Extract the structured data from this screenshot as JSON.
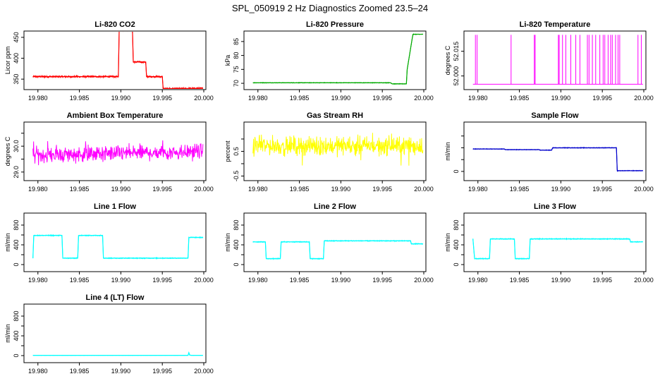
{
  "figure": {
    "title": "SPL_050919  2 Hz Diagnostics Zoomed 23.5–24"
  },
  "chart_data": [
    {
      "type": "line",
      "title": "Li-820 CO2",
      "ylabel": "Licor ppm",
      "color": "#ff0000",
      "xlim": [
        19.979,
        20.0
      ],
      "ylim": [
        330,
        460
      ],
      "xticks": [
        19.98,
        19.985,
        19.99,
        19.995,
        20.0
      ],
      "xtick_labels": [
        "19.980",
        "19.985",
        "19.990",
        "19.995",
        "20.000"
      ],
      "yticks": [
        350,
        400,
        450
      ],
      "ytick_labels": [
        "350",
        "400",
        "450"
      ],
      "noise": 2,
      "series": [
        {
          "x": [
            19.9794,
            19.9897,
            19.9898,
            19.9914,
            19.9915,
            19.993,
            19.9931,
            19.995,
            19.9951,
            19.9999
          ],
          "y": [
            356,
            356,
            467,
            467,
            391,
            391,
            356,
            356,
            327,
            328
          ]
        }
      ]
    },
    {
      "type": "line",
      "title": "Li-820 Pressure",
      "ylabel": "kPa",
      "color": "#00aa00",
      "xlim": [
        19.979,
        20.0
      ],
      "ylim": [
        68.5,
        88
      ],
      "xticks": [
        19.98,
        19.985,
        19.99,
        19.995,
        20.0
      ],
      "xtick_labels": [
        "19.980",
        "19.985",
        "19.990",
        "19.995",
        "20.000"
      ],
      "yticks": [
        70,
        75,
        80,
        85
      ],
      "ytick_labels": [
        "70",
        "75",
        "80",
        "85"
      ],
      "noise": 0.1,
      "series": [
        {
          "x": [
            19.9794,
            19.996,
            19.9962,
            19.9979,
            19.998,
            19.9986,
            19.9987,
            19.9999
          ],
          "y": [
            70.2,
            70.2,
            69.8,
            69.8,
            75,
            86,
            87.6,
            87.6
          ]
        }
      ]
    },
    {
      "type": "spikes",
      "title": "Li-820 Temperature",
      "ylabel": "degrees C",
      "color": "#ff00ff",
      "xlim": [
        19.979,
        20.0
      ],
      "ylim": [
        51.993,
        52.026
      ],
      "xticks": [
        19.98,
        19.985,
        19.99,
        19.995,
        20.0
      ],
      "xtick_labels": [
        "19.980",
        "19.985",
        "19.990",
        "19.995",
        "20.000"
      ],
      "yticks": [
        52.0,
        52.015
      ],
      "ytick_labels": [
        "52.000",
        "52.015"
      ],
      "base": 51.995,
      "peak": 52.025,
      "spikes": [
        19.9797,
        19.9799,
        19.984,
        19.9868,
        19.9869,
        19.9897,
        19.9898,
        19.9902,
        19.9906,
        19.9912,
        19.9918,
        19.9923,
        19.9932,
        19.9934,
        19.9938,
        19.9942,
        19.9947,
        19.9951,
        19.9953,
        19.9957,
        19.996,
        19.9962,
        19.9966,
        19.9969,
        19.9971,
        19.9993,
        19.9997
      ]
    },
    {
      "type": "noise",
      "title": "Ambient Box Temperature",
      "ylabel": "degrees C",
      "color": "#ff00ff",
      "xlim": [
        19.979,
        20.0
      ],
      "ylim": [
        28.75,
        30.85
      ],
      "xticks": [
        19.98,
        19.985,
        19.99,
        19.995,
        20.0
      ],
      "xtick_labels": [
        "19.980",
        "19.985",
        "19.990",
        "19.995",
        "20.000"
      ],
      "yticks": [
        29.0,
        29.5,
        30.0,
        30.5
      ],
      "ytick_labels": [
        "29.0",
        "",
        "30.0",
        ""
      ],
      "mean": [
        29.65,
        29.8
      ],
      "spread": 0.45,
      "density": 520
    },
    {
      "type": "noise",
      "title": "Gas Stream RH",
      "ylabel": "percent",
      "color": "#ffff00",
      "xlim": [
        19.979,
        20.0
      ],
      "ylim": [
        -0.6,
        1.6
      ],
      "xticks": [
        19.98,
        19.985,
        19.99,
        19.995,
        20.0
      ],
      "xtick_labels": [
        "19.980",
        "19.985",
        "19.990",
        "19.995",
        "20.000"
      ],
      "yticks": [
        -0.5,
        0.0,
        0.5,
        1.0
      ],
      "ytick_labels": [
        "-0.5",
        "",
        "0.5",
        ""
      ],
      "mean": [
        0.72,
        0.72
      ],
      "spread": 0.55,
      "density": 520
    },
    {
      "type": "line",
      "title": "Sample Flow",
      "ylabel": "ml/min",
      "color": "#0000cc",
      "xlim": [
        19.979,
        20.0
      ],
      "ylim": [
        -0.3,
        2.0
      ],
      "xticks": [
        19.98,
        19.985,
        19.99,
        19.995,
        20.0
      ],
      "xtick_labels": [
        "19.980",
        "19.985",
        "19.990",
        "19.995",
        "20.000"
      ],
      "yticks": [
        0,
        0.5,
        1.0,
        1.5
      ],
      "ytick_labels": [
        "0",
        "",
        "",
        ""
      ],
      "noise": 0.012,
      "series": [
        {
          "x": [
            19.9794,
            19.9832,
            19.9833,
            19.9874,
            19.9875,
            19.9889,
            19.989,
            19.9967,
            19.9968,
            19.9999
          ],
          "y": [
            0.95,
            0.95,
            0.92,
            0.92,
            0.9,
            0.9,
            1.0,
            1.0,
            0.03,
            0.03
          ]
        }
      ]
    },
    {
      "type": "line",
      "title": "Line 1 Flow",
      "ylabel": "ml/min",
      "color": "#00ffff",
      "xlim": [
        19.979,
        20.0
      ],
      "ylim": [
        -100,
        1000
      ],
      "xticks": [
        19.98,
        19.985,
        19.99,
        19.995,
        20.0
      ],
      "xtick_labels": [
        "19.980",
        "19.985",
        "19.990",
        "19.995",
        "20.000"
      ],
      "yticks": [
        0,
        200,
        400,
        600,
        800
      ],
      "ytick_labels": [
        "0",
        "",
        "400",
        "",
        "800"
      ],
      "noise": 8,
      "series": [
        {
          "x": [
            19.9794,
            19.9795,
            19.9829,
            19.983,
            19.9848,
            19.9849,
            19.9878,
            19.9879,
            19.9981,
            19.9982,
            19.9999
          ],
          "y": [
            130,
            590,
            590,
            130,
            130,
            590,
            590,
            130,
            130,
            550,
            550
          ]
        }
      ]
    },
    {
      "type": "line",
      "title": "Line 2 Flow",
      "ylabel": "ml/min",
      "color": "#00ffff",
      "xlim": [
        19.979,
        20.0
      ],
      "ylim": [
        -100,
        1000
      ],
      "xticks": [
        19.98,
        19.985,
        19.99,
        19.995,
        20.0
      ],
      "xtick_labels": [
        "19.980",
        "19.985",
        "19.990",
        "19.995",
        "20.000"
      ],
      "yticks": [
        0,
        200,
        400,
        600,
        800
      ],
      "ytick_labels": [
        "0",
        "",
        "400",
        "",
        "800"
      ],
      "noise": 8,
      "series": [
        {
          "x": [
            19.9794,
            19.9809,
            19.981,
            19.9827,
            19.9828,
            19.9862,
            19.9863,
            19.9879,
            19.988,
            19.9984,
            19.9985,
            19.9999
          ],
          "y": [
            460,
            460,
            120,
            120,
            460,
            460,
            120,
            120,
            480,
            480,
            420,
            420
          ]
        }
      ]
    },
    {
      "type": "line",
      "title": "Line 3 Flow",
      "ylabel": "ml/min",
      "color": "#00ffff",
      "xlim": [
        19.979,
        20.0
      ],
      "ylim": [
        -100,
        1000
      ],
      "xticks": [
        19.98,
        19.985,
        19.99,
        19.995,
        20.0
      ],
      "xtick_labels": [
        "19.980",
        "19.985",
        "19.990",
        "19.995",
        "20.000"
      ],
      "yticks": [
        0,
        200,
        400,
        600,
        800
      ],
      "ytick_labels": [
        "0",
        "",
        "400",
        "",
        "800"
      ],
      "noise": 8,
      "series": [
        {
          "x": [
            19.9794,
            19.9796,
            19.9814,
            19.9815,
            19.9844,
            19.9845,
            19.9862,
            19.9863,
            19.9983,
            19.9984,
            19.9999
          ],
          "y": [
            520,
            120,
            120,
            520,
            520,
            120,
            120,
            520,
            520,
            460,
            460
          ]
        }
      ]
    },
    {
      "type": "line",
      "title": "Line 4 (LT) Flow",
      "ylabel": "ml/min",
      "color": "#00ffff",
      "xlim": [
        19.979,
        20.0
      ],
      "ylim": [
        -100,
        1000
      ],
      "xticks": [
        19.98,
        19.985,
        19.99,
        19.995,
        20.0
      ],
      "xtick_labels": [
        "19.980",
        "19.985",
        "19.990",
        "19.995",
        "20.000"
      ],
      "yticks": [
        0,
        200,
        400,
        600,
        800
      ],
      "ytick_labels": [
        "0",
        "",
        "400",
        "",
        "800"
      ],
      "noise": 2,
      "series": [
        {
          "x": [
            19.9794,
            19.9981,
            19.9982,
            19.9983,
            19.9985,
            19.9999
          ],
          "y": [
            5,
            5,
            60,
            10,
            5,
            5
          ]
        }
      ]
    }
  ]
}
